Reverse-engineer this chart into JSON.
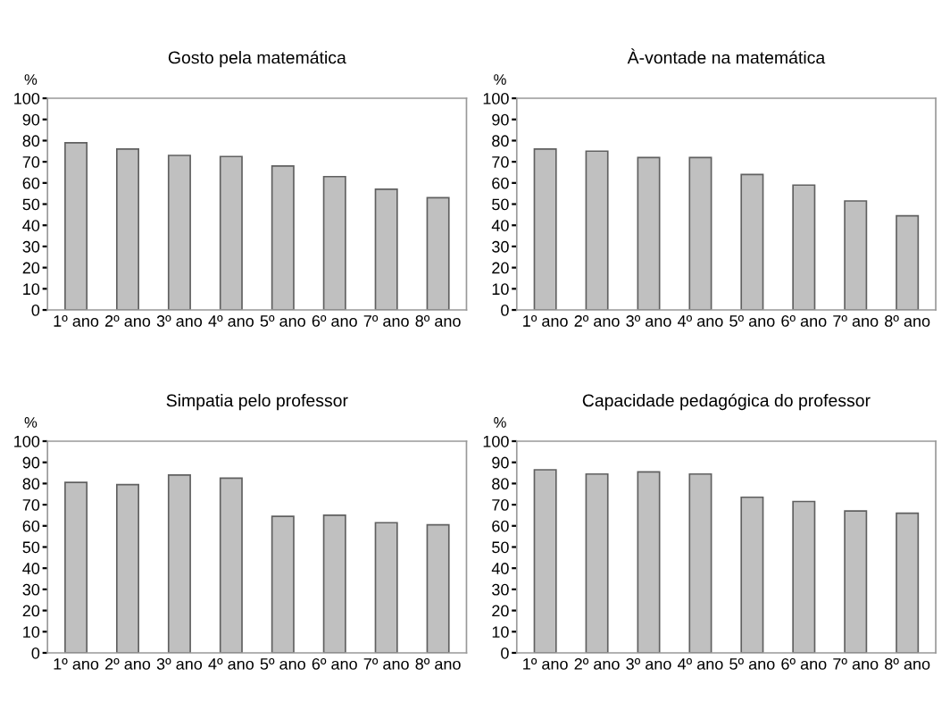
{
  "chart_data": [
    {
      "type": "bar",
      "title": "Gosto pela matemática",
      "ylabel": "%",
      "categories": [
        "1º ano",
        "2º ano",
        "3º ano",
        "4º ano",
        "5º ano",
        "6º ano",
        "7º ano",
        "8º ano"
      ],
      "values": [
        79,
        76,
        73,
        72.5,
        68,
        63,
        57,
        53
      ],
      "color": "#c0c0c0",
      "ylim": [
        0,
        100
      ],
      "yticks": [
        0,
        10,
        20,
        30,
        40,
        50,
        60,
        70,
        80,
        90,
        100
      ],
      "grid": false,
      "legend": false
    },
    {
      "type": "bar",
      "title": "À-vontade na matemática",
      "ylabel": "%",
      "categories": [
        "1º ano",
        "2º ano",
        "3º ano",
        "4º ano",
        "5º ano",
        "6º ano",
        "7º ano",
        "8º ano"
      ],
      "values": [
        76,
        75,
        72,
        72,
        64,
        59,
        51.5,
        44.5
      ],
      "color": "#c0c0c0",
      "ylim": [
        0,
        100
      ],
      "yticks": [
        0,
        10,
        20,
        30,
        40,
        50,
        60,
        70,
        80,
        90,
        100
      ],
      "grid": false,
      "legend": false
    },
    {
      "type": "bar",
      "title": "Simpatia pelo professor",
      "ylabel": "%",
      "categories": [
        "1º ano",
        "2º ano",
        "3º ano",
        "4º ano",
        "5º ano",
        "6º ano",
        "7º ano",
        "8º ano"
      ],
      "values": [
        80.5,
        79.5,
        84,
        82.5,
        64.5,
        65,
        61.5,
        60.5
      ],
      "color": "#c0c0c0",
      "ylim": [
        0,
        100
      ],
      "yticks": [
        0,
        10,
        20,
        30,
        40,
        50,
        60,
        70,
        80,
        90,
        100
      ],
      "grid": false,
      "legend": false
    },
    {
      "type": "bar",
      "title": "Capacidade pedagógica do professor",
      "ylabel": "%",
      "categories": [
        "1º ano",
        "2º ano",
        "3º ano",
        "4º ano",
        "5º ano",
        "6º ano",
        "7º ano",
        "8º ano"
      ],
      "values": [
        86.5,
        84.5,
        85.5,
        84.5,
        73.5,
        71.5,
        67,
        66
      ],
      "color": "#c0c0c0",
      "ylim": [
        0,
        100
      ],
      "yticks": [
        0,
        10,
        20,
        30,
        40,
        50,
        60,
        70,
        80,
        90,
        100
      ],
      "grid": false,
      "legend": false
    }
  ]
}
